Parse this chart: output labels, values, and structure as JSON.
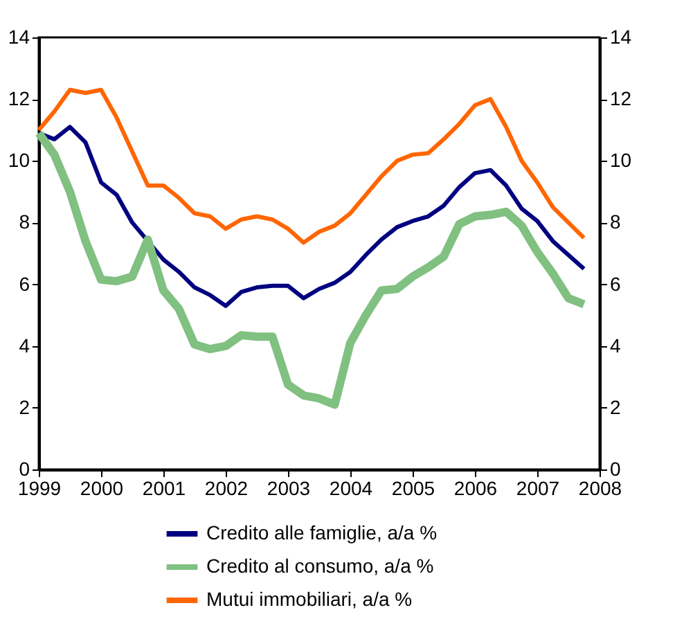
{
  "chart_data": {
    "type": "line",
    "x": [
      1999.0,
      1999.25,
      1999.5,
      1999.75,
      2000.0,
      2000.25,
      2000.5,
      2000.75,
      2001.0,
      2001.25,
      2001.5,
      2001.75,
      2002.0,
      2002.25,
      2002.5,
      2002.75,
      2003.0,
      2003.25,
      2003.5,
      2003.75,
      2004.0,
      2004.25,
      2004.5,
      2004.75,
      2005.0,
      2005.25,
      2005.5,
      2005.75,
      2006.0,
      2006.25,
      2006.5,
      2006.75,
      2007.0,
      2007.25,
      2007.5,
      2007.75
    ],
    "series": [
      {
        "name": "Credito alle famiglie, a/a %",
        "color": "#000080",
        "values": [
          10.9,
          10.7,
          11.1,
          10.6,
          9.3,
          8.9,
          8.0,
          7.4,
          6.8,
          6.4,
          5.9,
          5.65,
          5.3,
          5.75,
          5.9,
          5.95,
          5.95,
          5.55,
          5.85,
          6.05,
          6.4,
          6.95,
          7.45,
          7.85,
          8.05,
          8.2,
          8.55,
          9.15,
          9.6,
          9.7,
          9.2,
          8.45,
          8.05,
          7.4,
          6.95,
          6.5
        ]
      },
      {
        "name": "Credito al consumo, a/a %",
        "color": "#80c080",
        "values": [
          10.9,
          10.2,
          9.0,
          7.4,
          6.15,
          6.1,
          6.25,
          7.45,
          5.8,
          5.2,
          4.05,
          3.9,
          4.0,
          4.35,
          4.3,
          4.3,
          2.75,
          2.4,
          2.3,
          2.1,
          4.1,
          5.0,
          5.8,
          5.85,
          6.25,
          6.55,
          6.9,
          7.95,
          8.2,
          8.25,
          8.35,
          7.9,
          7.05,
          6.35,
          5.55,
          5.35
        ]
      },
      {
        "name": "Mutui immobiliari, a/a %",
        "color": "#ff6600",
        "values": [
          11.0,
          11.6,
          12.3,
          12.2,
          12.3,
          11.4,
          10.3,
          9.2,
          9.2,
          8.8,
          8.3,
          8.2,
          7.8,
          8.1,
          8.2,
          8.1,
          7.8,
          7.35,
          7.7,
          7.9,
          8.3,
          8.9,
          9.5,
          10.0,
          10.2,
          10.25,
          10.7,
          11.2,
          11.8,
          12.0,
          11.1,
          10.0,
          9.3,
          8.5,
          8.0,
          7.5
        ]
      }
    ],
    "xlim": [
      1999,
      2008
    ],
    "xticks": [
      1999,
      2000,
      2001,
      2002,
      2003,
      2004,
      2005,
      2006,
      2007,
      2008
    ],
    "ylim": [
      0,
      14
    ],
    "yticks": [
      0,
      2,
      4,
      6,
      8,
      10,
      12,
      14
    ],
    "y2lim": [
      0,
      14
    ],
    "y2ticks": [
      0,
      2,
      4,
      6,
      8,
      10,
      12,
      14
    ],
    "grid": false,
    "legend": "bottom",
    "marker": "none",
    "line_style": "solid"
  }
}
